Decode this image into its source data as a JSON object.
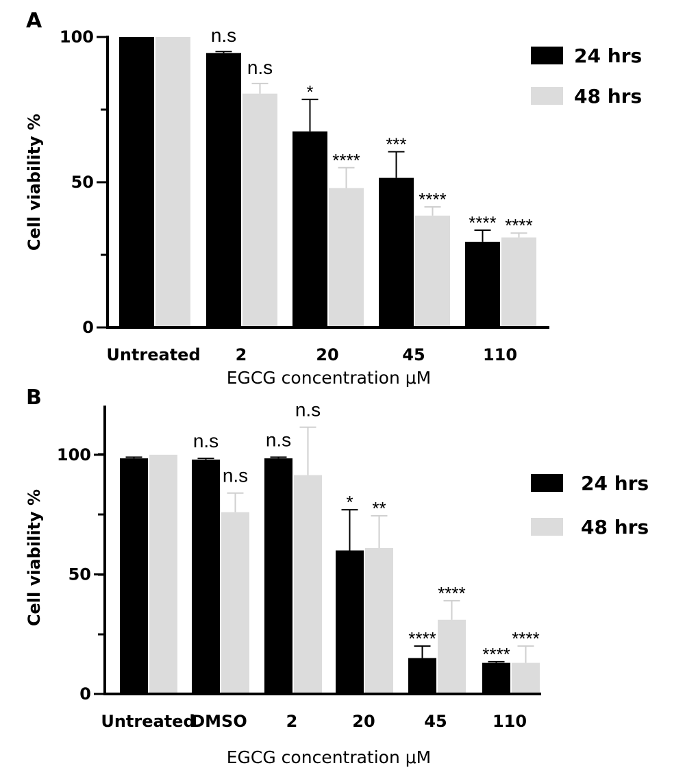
{
  "chart_data": [
    {
      "type": "bar",
      "panel": "A",
      "ylabel": "Cell viability %",
      "xlabel": "EGCG concentration μM",
      "ylim": [
        0,
        100
      ],
      "yticks": [
        0,
        50,
        100
      ],
      "categories": [
        "Untreated",
        "2",
        "20",
        "45",
        "110"
      ],
      "legend_position": "top-right",
      "series": [
        {
          "name": "24 hrs",
          "color": "#000000",
          "values": [
            100,
            94.5,
            67.5,
            51.5,
            29.5
          ],
          "errors": [
            0,
            0.5,
            11,
            9,
            4
          ],
          "significance": [
            "",
            "n.s",
            "*",
            "***",
            "****"
          ]
        },
        {
          "name": "48 hrs",
          "color": "#dcdcdc",
          "values": [
            100,
            80.5,
            48,
            38.5,
            31
          ],
          "errors": [
            0,
            3.5,
            7,
            3,
            1.5
          ],
          "significance": [
            "",
            "n.s",
            "****",
            "****",
            "****"
          ]
        }
      ]
    },
    {
      "type": "bar",
      "panel": "B",
      "ylabel": "Cell viability %",
      "xlabel": "EGCG concentration μM",
      "ylim": [
        0,
        120
      ],
      "yticks": [
        0,
        50,
        100
      ],
      "categories": [
        "Untreated",
        "DMSO",
        "2",
        "20",
        "45",
        "110"
      ],
      "legend_position": "right",
      "series": [
        {
          "name": "24 hrs",
          "color": "#000000",
          "values": [
            98.5,
            98,
            98.5,
            60,
            15,
            13
          ],
          "errors": [
            0.5,
            0.5,
            0.5,
            17,
            5,
            0.5
          ],
          "significance": [
            "",
            "n.s",
            "n.s",
            "*",
            "****",
            "****"
          ]
        },
        {
          "name": "48 hrs",
          "color": "#dcdcdc",
          "values": [
            100,
            76,
            91.5,
            61,
            31,
            13
          ],
          "errors": [
            0,
            8,
            20,
            13.5,
            8,
            7
          ],
          "significance": [
            "",
            "n.s",
            "n.s",
            "**",
            "****",
            "****"
          ]
        }
      ]
    }
  ]
}
